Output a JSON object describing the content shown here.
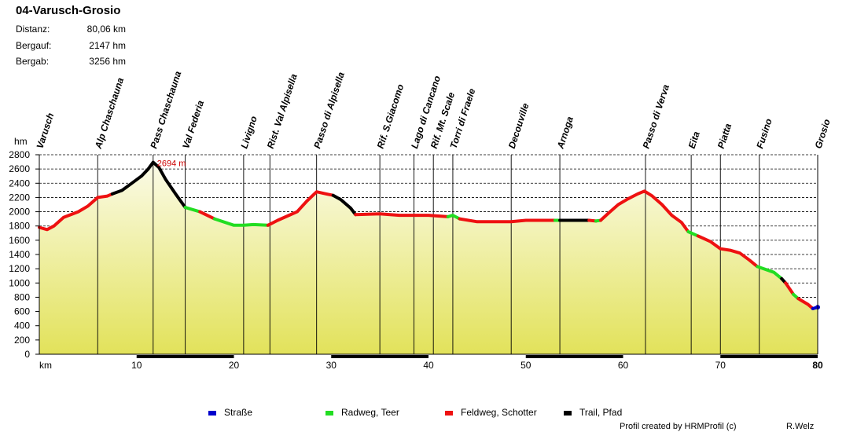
{
  "header": {
    "title": "04-Varusch-Grosio",
    "stats": [
      {
        "label": "Distanz:",
        "value": "80,06 km"
      },
      {
        "label": "Bergauf:",
        "value": "2147 hm"
      },
      {
        "label": "Bergab:",
        "value": "3256 hm"
      }
    ]
  },
  "legend": [
    {
      "label": "Straße",
      "color": "#0000cc"
    },
    {
      "label": "Radweg, Teer",
      "color": "#22dd22"
    },
    {
      "label": "Feldweg, Schotter",
      "color": "#ee1111"
    },
    {
      "label": "Trail, Pfad",
      "color": "#000000"
    }
  ],
  "footer": {
    "credit": "Profil created by HRMProfil (c)",
    "author": "R.Welz"
  },
  "chart_data": {
    "type": "area",
    "ylabel": "hm",
    "xlabel": "km",
    "xlim": [
      0,
      80
    ],
    "ylim": [
      0,
      2800
    ],
    "x_ticks": [
      10,
      20,
      30,
      40,
      50,
      60,
      70,
      80
    ],
    "y_ticks": [
      0,
      200,
      400,
      600,
      800,
      1000,
      1200,
      1400,
      1600,
      1800,
      2000,
      2200,
      2400,
      2600,
      2800
    ],
    "grid": true,
    "annotation": {
      "text": "2694 m",
      "x": 11.7,
      "y": 2694
    },
    "waypoints": [
      {
        "name": "Varusch",
        "km": 0.0
      },
      {
        "name": "Alp Chaschauna",
        "km": 6.0
      },
      {
        "name": "Pass Chaschauna",
        "km": 11.7
      },
      {
        "name": "Val Federia",
        "km": 15.0
      },
      {
        "name": "Livigno",
        "km": 21.0
      },
      {
        "name": "Rist. Val Alpisella",
        "km": 23.7
      },
      {
        "name": "Passo di Alpisella",
        "km": 28.5
      },
      {
        "name": "Rif. S.Giacomo",
        "km": 35.0
      },
      {
        "name": "Lago di Cancano",
        "km": 38.5
      },
      {
        "name": "Rif. Mt. Scale",
        "km": 40.5
      },
      {
        "name": "Torri di Fraele",
        "km": 42.5
      },
      {
        "name": "Decouville",
        "km": 48.5
      },
      {
        "name": "Arnoga",
        "km": 53.5
      },
      {
        "name": "Passo di Verva",
        "km": 62.3
      },
      {
        "name": "Eita",
        "km": 67.0
      },
      {
        "name": "Piatta",
        "km": 70.0
      },
      {
        "name": "Fusino",
        "km": 74.0
      },
      {
        "name": "Grosio",
        "km": 80.0
      }
    ],
    "series": [
      {
        "name": "Feldweg, Schotter",
        "color": "#ee1111",
        "points": [
          [
            0,
            1780
          ],
          [
            0.8,
            1750
          ],
          [
            1.5,
            1800
          ],
          [
            2.5,
            1920
          ],
          [
            4,
            2000
          ],
          [
            5,
            2080
          ],
          [
            6,
            2200
          ],
          [
            7,
            2220
          ],
          [
            7.5,
            2250
          ]
        ]
      },
      {
        "name": "Trail, Pfad",
        "color": "#000000",
        "points": [
          [
            7.5,
            2250
          ],
          [
            8.5,
            2300
          ],
          [
            9.5,
            2400
          ],
          [
            10.5,
            2500
          ],
          [
            11.2,
            2600
          ],
          [
            11.7,
            2694
          ],
          [
            12.3,
            2620
          ],
          [
            13.0,
            2450
          ],
          [
            14.0,
            2250
          ],
          [
            15.0,
            2060
          ]
        ]
      },
      {
        "name": "Radweg, Teer",
        "color": "#22dd22",
        "points": [
          [
            15.0,
            2060
          ],
          [
            16.5,
            2000
          ]
        ]
      },
      {
        "name": "Feldweg, Schotter",
        "color": "#ee1111",
        "points": [
          [
            16.5,
            2000
          ],
          [
            18.0,
            1900
          ]
        ]
      },
      {
        "name": "Radweg, Teer",
        "color": "#22dd22",
        "points": [
          [
            18.0,
            1900
          ],
          [
            20.0,
            1810
          ],
          [
            21.0,
            1810
          ],
          [
            22.0,
            1820
          ],
          [
            23.5,
            1810
          ]
        ]
      },
      {
        "name": "Feldweg, Schotter",
        "color": "#ee1111",
        "points": [
          [
            23.5,
            1810
          ],
          [
            24.5,
            1880
          ],
          [
            25.5,
            1940
          ],
          [
            26.5,
            2000
          ],
          [
            27.5,
            2150
          ],
          [
            28.5,
            2280
          ],
          [
            29.5,
            2250
          ],
          [
            30.2,
            2230
          ]
        ]
      },
      {
        "name": "Trail, Pfad",
        "color": "#000000",
        "points": [
          [
            30.2,
            2230
          ],
          [
            31.0,
            2170
          ],
          [
            32.0,
            2050
          ],
          [
            32.5,
            1960
          ]
        ]
      },
      {
        "name": "Feldweg, Schotter",
        "color": "#ee1111",
        "points": [
          [
            32.5,
            1960
          ],
          [
            35.0,
            1970
          ],
          [
            37.0,
            1950
          ],
          [
            40.0,
            1950
          ],
          [
            42.0,
            1930
          ]
        ]
      },
      {
        "name": "Radweg, Teer",
        "color": "#22dd22",
        "points": [
          [
            42.0,
            1930
          ],
          [
            42.5,
            1950
          ],
          [
            43.2,
            1900
          ]
        ]
      },
      {
        "name": "Feldweg, Schotter",
        "color": "#ee1111",
        "points": [
          [
            43.2,
            1900
          ],
          [
            45.0,
            1860
          ],
          [
            48.5,
            1860
          ],
          [
            50.0,
            1880
          ],
          [
            53.0,
            1880
          ]
        ]
      },
      {
        "name": "Radweg, Teer",
        "color": "#22dd22",
        "points": [
          [
            53.0,
            1880
          ],
          [
            53.5,
            1880
          ]
        ]
      },
      {
        "name": "Trail, Pfad",
        "color": "#000000",
        "points": [
          [
            53.5,
            1880
          ],
          [
            56.5,
            1880
          ]
        ]
      },
      {
        "name": "Feldweg, Schotter",
        "color": "#ee1111",
        "points": [
          [
            56.5,
            1880
          ],
          [
            57.2,
            1870
          ]
        ]
      },
      {
        "name": "Radweg, Teer",
        "color": "#22dd22",
        "points": [
          [
            57.2,
            1870
          ],
          [
            57.7,
            1880
          ]
        ]
      },
      {
        "name": "Feldweg, Schotter",
        "color": "#ee1111",
        "points": [
          [
            57.7,
            1880
          ],
          [
            58.5,
            1980
          ],
          [
            59.5,
            2100
          ],
          [
            60.5,
            2180
          ],
          [
            61.5,
            2250
          ],
          [
            62.2,
            2290
          ],
          [
            63.0,
            2220
          ],
          [
            64.0,
            2100
          ],
          [
            65.0,
            1950
          ],
          [
            66.0,
            1850
          ],
          [
            66.7,
            1720
          ]
        ]
      },
      {
        "name": "Radweg, Teer",
        "color": "#22dd22",
        "points": [
          [
            66.7,
            1720
          ],
          [
            67.7,
            1660
          ]
        ]
      },
      {
        "name": "Feldweg, Schotter",
        "color": "#ee1111",
        "points": [
          [
            67.7,
            1660
          ],
          [
            69.0,
            1580
          ],
          [
            70.0,
            1480
          ],
          [
            71.0,
            1460
          ],
          [
            72.0,
            1420
          ],
          [
            73.0,
            1320
          ],
          [
            73.8,
            1230
          ]
        ]
      },
      {
        "name": "Radweg, Teer",
        "color": "#22dd22",
        "points": [
          [
            73.8,
            1230
          ],
          [
            75.5,
            1150
          ],
          [
            76.3,
            1060
          ]
        ]
      },
      {
        "name": "Trail, Pfad",
        "color": "#000000",
        "points": [
          [
            76.3,
            1060
          ],
          [
            76.7,
            1000
          ]
        ]
      },
      {
        "name": "Feldweg, Schotter",
        "color": "#ee1111",
        "points": [
          [
            76.7,
            1000
          ],
          [
            77.5,
            840
          ]
        ]
      },
      {
        "name": "Radweg, Teer",
        "color": "#22dd22",
        "points": [
          [
            77.5,
            840
          ],
          [
            78.0,
            780
          ]
        ]
      },
      {
        "name": "Feldweg, Schotter",
        "color": "#ee1111",
        "points": [
          [
            78.0,
            780
          ],
          [
            79.0,
            700
          ],
          [
            79.5,
            640
          ]
        ]
      },
      {
        "name": "Straße",
        "color": "#0000cc",
        "points": [
          [
            79.5,
            640
          ],
          [
            80.0,
            660
          ]
        ]
      }
    ]
  }
}
